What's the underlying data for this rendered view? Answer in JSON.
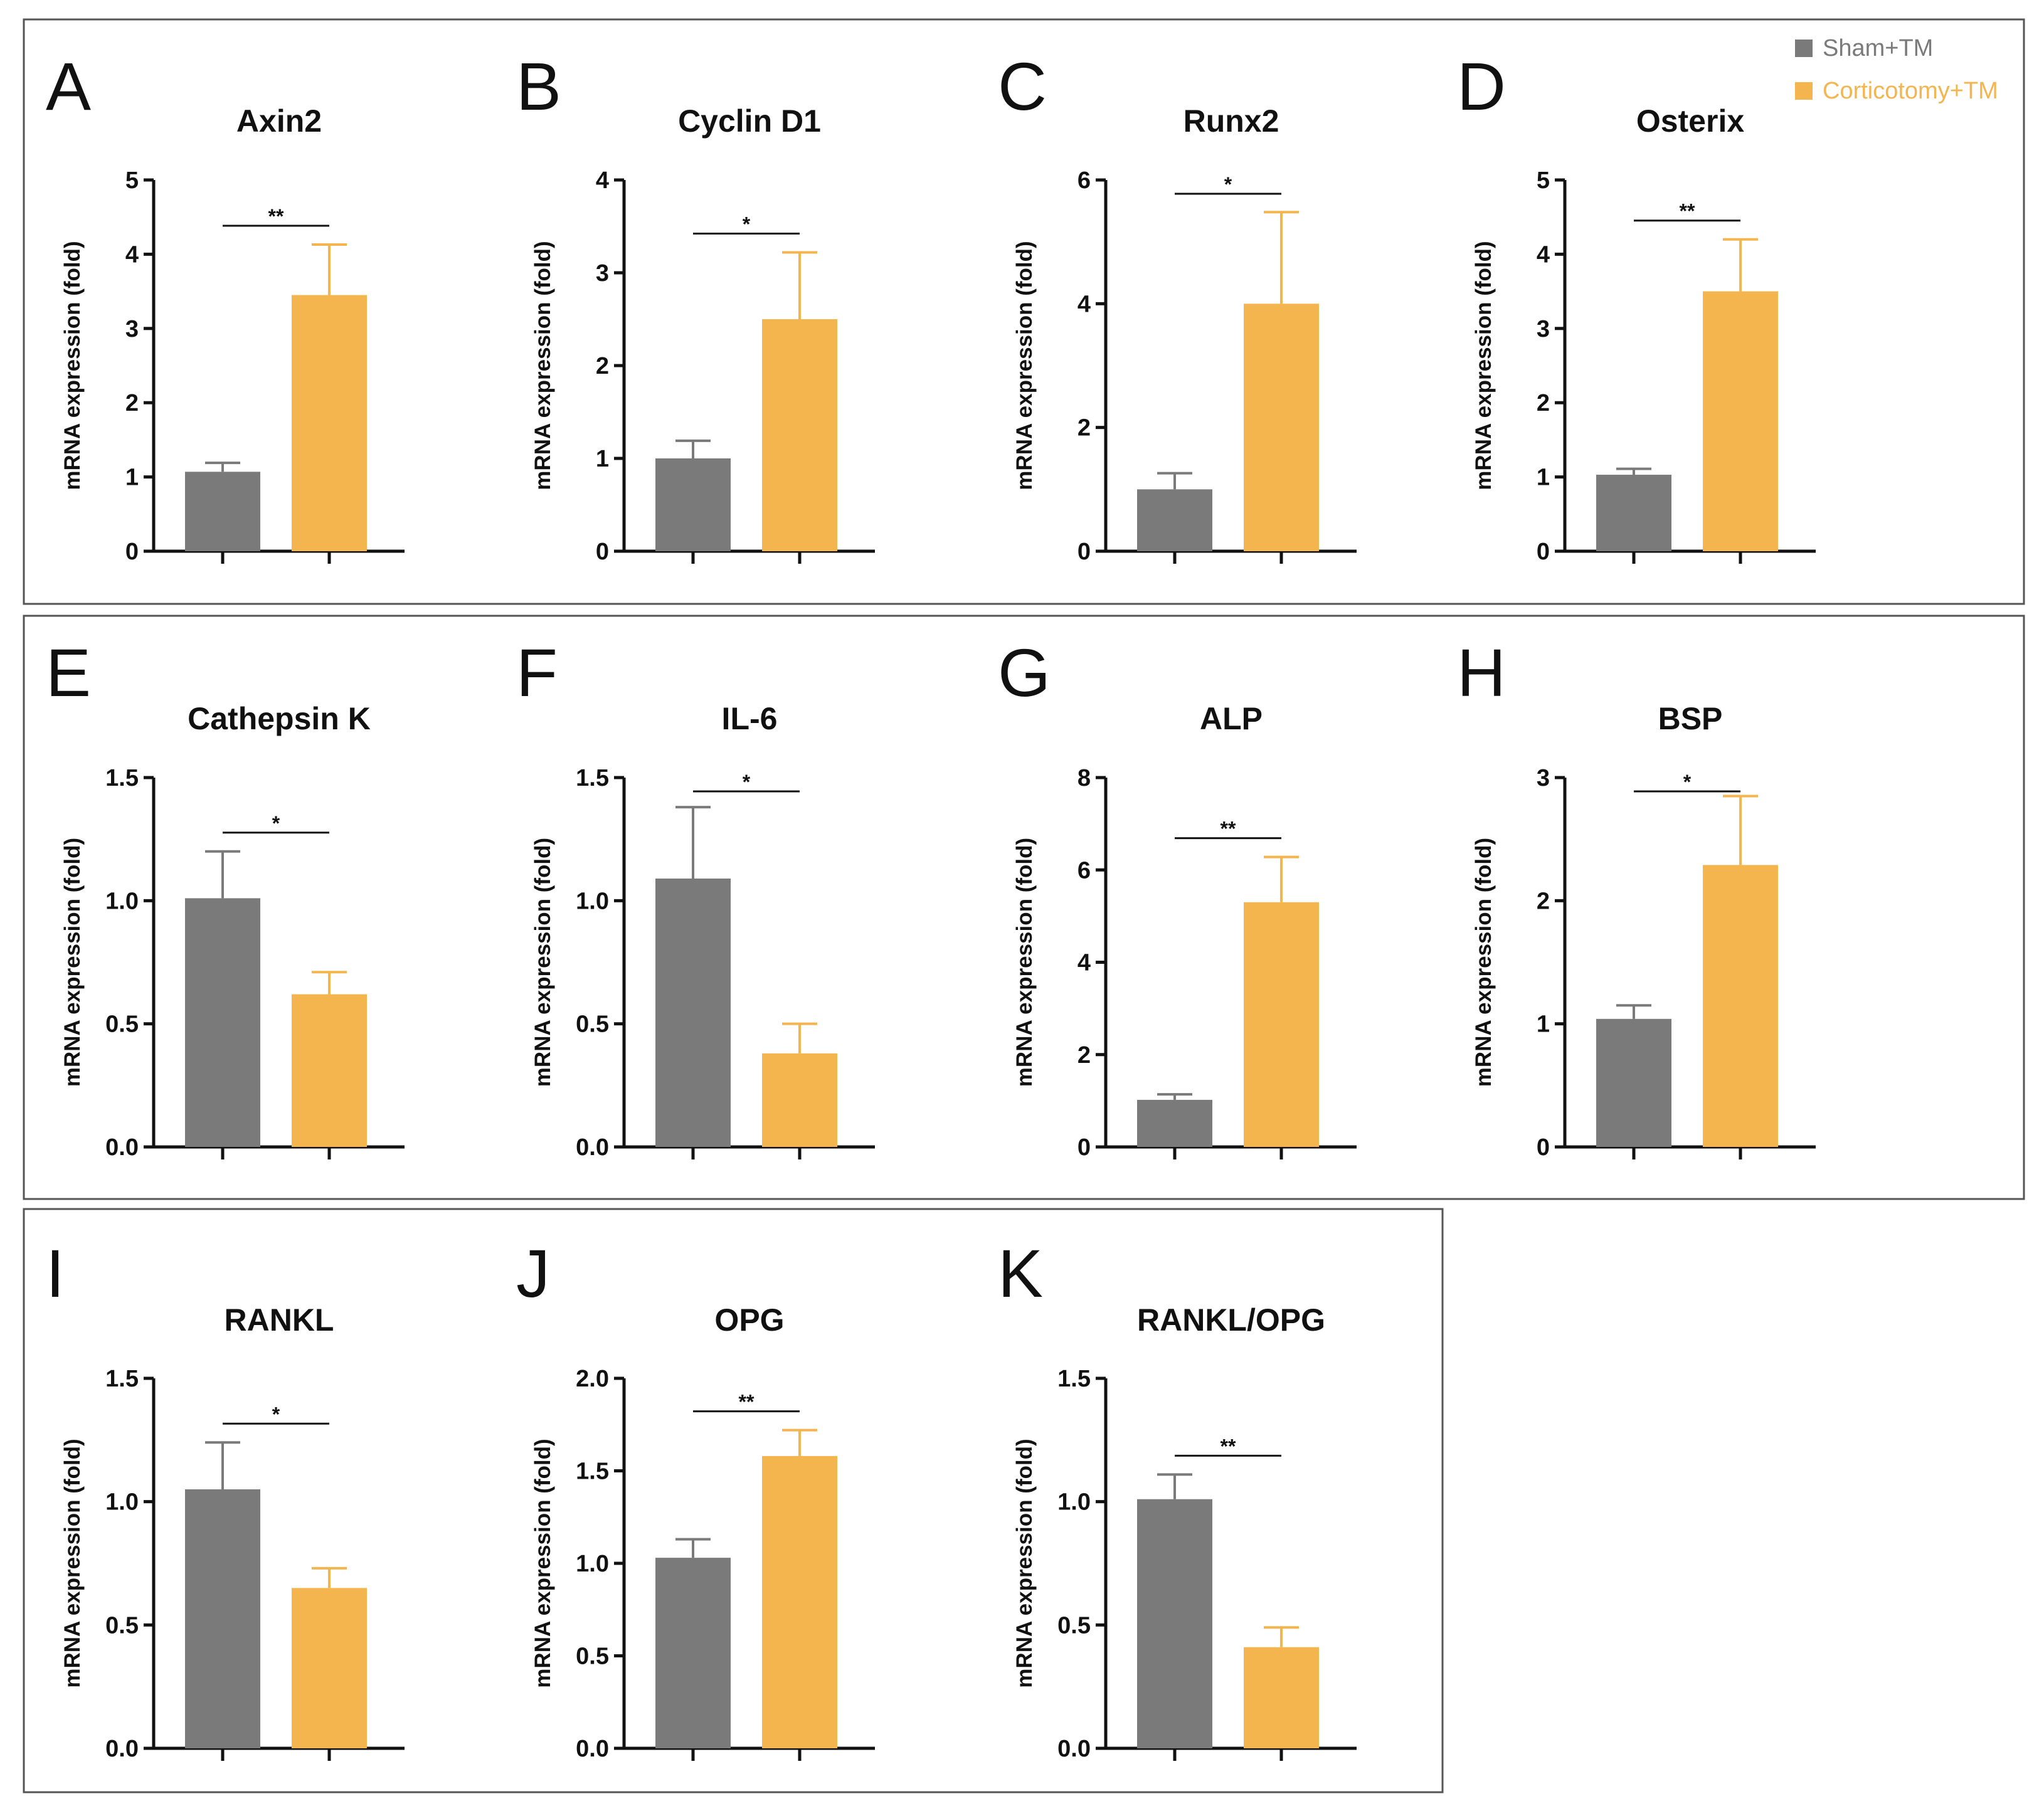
{
  "legend": {
    "items": [
      {
        "name": "Sham+TM",
        "color": "#7a7a7a"
      },
      {
        "name": "Corticotomy+TM",
        "color": "#f4b54f"
      }
    ]
  },
  "colors": {
    "sham": "#7a7a7a",
    "corticotomy": "#f4b54f",
    "axis": "#111111",
    "frame": "#555555"
  },
  "chart_data": [
    {
      "panel": "A",
      "type": "bar",
      "title": "Axin2",
      "ylabel": "mRNA expression (fold)",
      "ylim": [
        0,
        5
      ],
      "yticks": [
        "0",
        "1",
        "2",
        "3",
        "4",
        "5"
      ],
      "series": [
        {
          "name": "Sham+TM",
          "values": [
            1.07
          ],
          "error": [
            0.12
          ]
        },
        {
          "name": "Corticotomy+TM",
          "values": [
            3.45
          ],
          "error": [
            0.68
          ]
        }
      ],
      "significance": "**"
    },
    {
      "panel": "B",
      "type": "bar",
      "title": "Cyclin D1",
      "ylabel": "mRNA expression (fold)",
      "ylim": [
        0,
        4
      ],
      "yticks": [
        "0",
        "1",
        "2",
        "3",
        "4"
      ],
      "series": [
        {
          "name": "Sham+TM",
          "values": [
            1.0
          ],
          "error": [
            0.19
          ]
        },
        {
          "name": "Corticotomy+TM",
          "values": [
            2.5
          ],
          "error": [
            0.72
          ]
        }
      ],
      "significance": "*"
    },
    {
      "panel": "C",
      "type": "bar",
      "title": "Runx2",
      "ylabel": "mRNA expression (fold)",
      "ylim": [
        0,
        6
      ],
      "yticks": [
        "0",
        "2",
        "4",
        "6"
      ],
      "series": [
        {
          "name": "Sham+TM",
          "values": [
            1.0
          ],
          "error": [
            0.26
          ]
        },
        {
          "name": "Corticotomy+TM",
          "values": [
            4.0
          ],
          "error": [
            1.48
          ]
        }
      ],
      "significance": "*"
    },
    {
      "panel": "D",
      "type": "bar",
      "title": "Osterix",
      "ylabel": "mRNA expression (fold)",
      "ylim": [
        0,
        5
      ],
      "yticks": [
        "0",
        "1",
        "2",
        "3",
        "4",
        "5"
      ],
      "series": [
        {
          "name": "Sham+TM",
          "values": [
            1.03
          ],
          "error": [
            0.08
          ]
        },
        {
          "name": "Corticotomy+TM",
          "values": [
            3.5
          ],
          "error": [
            0.7
          ]
        }
      ],
      "significance": "**"
    },
    {
      "panel": "E",
      "type": "bar",
      "title": "Cathepsin K",
      "ylabel": "mRNA expression (fold)",
      "ylim": [
        0,
        1.5
      ],
      "yticks": [
        "0.0",
        "0.5",
        "1.0",
        "1.5"
      ],
      "series": [
        {
          "name": "Sham+TM",
          "values": [
            1.01
          ],
          "error": [
            0.19
          ]
        },
        {
          "name": "Corticotomy+TM",
          "values": [
            0.62
          ],
          "error": [
            0.09
          ]
        }
      ],
      "significance": "*"
    },
    {
      "panel": "F",
      "type": "bar",
      "title": "IL-6",
      "ylabel": "mRNA expression (fold)",
      "ylim": [
        0,
        1.5
      ],
      "yticks": [
        "0.0",
        "0.5",
        "1.0",
        "1.5"
      ],
      "series": [
        {
          "name": "Sham+TM",
          "values": [
            1.09
          ],
          "error": [
            0.29
          ]
        },
        {
          "name": "Corticotomy+TM",
          "values": [
            0.38
          ],
          "error": [
            0.12
          ]
        }
      ],
      "significance": "*"
    },
    {
      "panel": "G",
      "type": "bar",
      "title": "ALP",
      "ylabel": "mRNA expression (fold)",
      "ylim": [
        0,
        8
      ],
      "yticks": [
        "0",
        "2",
        "4",
        "6",
        "8"
      ],
      "series": [
        {
          "name": "Sham+TM",
          "values": [
            1.02
          ],
          "error": [
            0.12
          ]
        },
        {
          "name": "Corticotomy+TM",
          "values": [
            5.3
          ],
          "error": [
            0.98
          ]
        }
      ],
      "significance": "**"
    },
    {
      "panel": "H",
      "type": "bar",
      "title": "BSP",
      "ylabel": "mRNA expression (fold)",
      "ylim": [
        0,
        3
      ],
      "yticks": [
        "0",
        "1",
        "2",
        "3"
      ],
      "series": [
        {
          "name": "Sham+TM",
          "values": [
            1.04
          ],
          "error": [
            0.11
          ]
        },
        {
          "name": "Corticotomy+TM",
          "values": [
            2.29
          ],
          "error": [
            0.56
          ]
        }
      ],
      "significance": "*"
    },
    {
      "panel": "I",
      "type": "bar",
      "title": "RANKL",
      "ylabel": "mRNA expression (fold)",
      "ylim": [
        0,
        1.5
      ],
      "yticks": [
        "0.0",
        "0.5",
        "1.0",
        "1.5"
      ],
      "series": [
        {
          "name": "Sham+TM",
          "values": [
            1.05
          ],
          "error": [
            0.19
          ]
        },
        {
          "name": "Corticotomy+TM",
          "values": [
            0.65
          ],
          "error": [
            0.08
          ]
        }
      ],
      "significance": "*"
    },
    {
      "panel": "J",
      "type": "bar",
      "title": "OPG",
      "ylabel": "mRNA expression (fold)",
      "ylim": [
        0,
        2.0
      ],
      "yticks": [
        "0.0",
        "0.5",
        "1.0",
        "1.5",
        "2.0"
      ],
      "series": [
        {
          "name": "Sham+TM",
          "values": [
            1.03
          ],
          "error": [
            0.1
          ]
        },
        {
          "name": "Corticotomy+TM",
          "values": [
            1.58
          ],
          "error": [
            0.14
          ]
        }
      ],
      "significance": "**"
    },
    {
      "panel": "K",
      "type": "bar",
      "title": "RANKL/OPG",
      "ylabel": "mRNA expression (fold)",
      "ylim": [
        0,
        1.5
      ],
      "yticks": [
        "0.0",
        "0.5",
        "1.0",
        "1.5"
      ],
      "series": [
        {
          "name": "Sham+TM",
          "values": [
            1.01
          ],
          "error": [
            0.1
          ]
        },
        {
          "name": "Corticotomy+TM",
          "values": [
            0.41
          ],
          "error": [
            0.08
          ]
        }
      ],
      "significance": "**"
    }
  ]
}
